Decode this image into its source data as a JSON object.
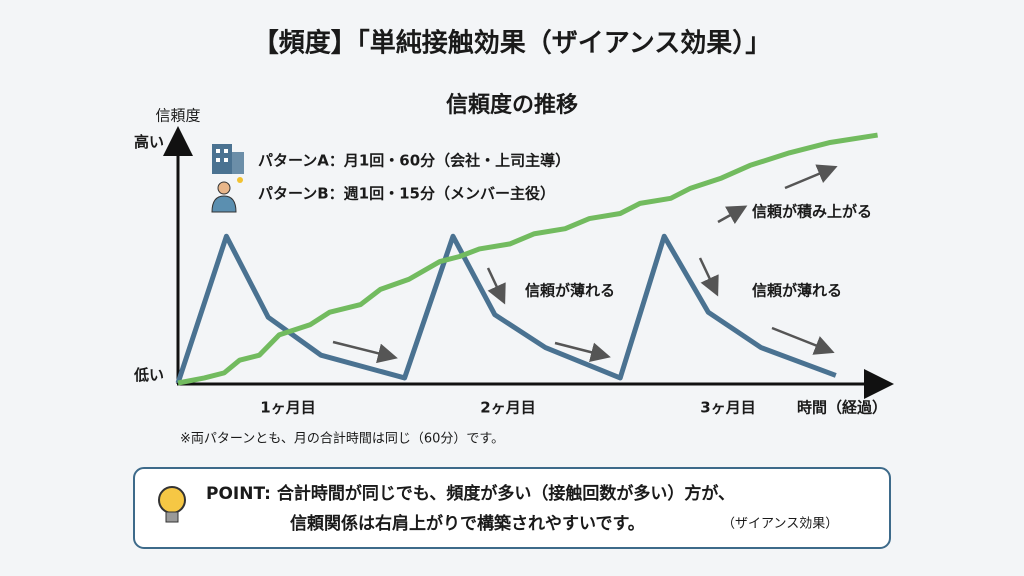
{
  "slide_title": "【頻度】「単純接触効果（ザイアンス効果）」",
  "chart_data": {
    "type": "line",
    "title": "信頼度の推移",
    "y_label": "信頼度",
    "x_label": "時間（経過）",
    "xlim": [
      0,
      3.25
    ],
    "ylim": [
      0,
      100
    ],
    "xticks": [
      {
        "value": 0.5,
        "label": "1ヶ月目"
      },
      {
        "value": 1.5,
        "label": "2ヶ月目"
      },
      {
        "value": 2.5,
        "label": "3ヶ月目"
      }
    ],
    "yticks": [
      {
        "value": 3,
        "label": "低い"
      },
      {
        "value": 95,
        "label": "高い"
      }
    ],
    "series": [
      {
        "name": "パターンA：月1回・60分（会社・上司主導）",
        "color": "#4a7291",
        "x": [
          0,
          0.22,
          0.41,
          0.65,
          1.03,
          1.25,
          1.44,
          1.67,
          2.01,
          2.21,
          2.41,
          2.65,
          2.99
        ],
        "values": [
          0,
          58,
          26,
          11,
          2,
          58,
          27,
          14,
          2,
          58,
          28,
          14,
          3
        ]
      },
      {
        "name": "パターンB：週1回・15分（メンバー主役）",
        "color": "#72bb5f",
        "x": [
          0,
          0.12,
          0.21,
          0.28,
          0.37,
          0.46,
          0.6,
          0.69,
          0.83,
          0.92,
          1.05,
          1.19,
          1.28,
          1.37,
          1.51,
          1.62,
          1.76,
          1.87,
          2.01,
          2.1,
          2.24,
          2.33,
          2.47,
          2.6,
          2.78,
          2.96,
          3.18
        ],
        "values": [
          0,
          2,
          4,
          9,
          11,
          19,
          23,
          28,
          31,
          37,
          41,
          48,
          50,
          53,
          55,
          59,
          61,
          65,
          67,
          71,
          73,
          77,
          81,
          86,
          91,
          95,
          98
        ]
      }
    ],
    "annotations": [
      "信頼が薄れる",
      "信頼が薄れる",
      "信頼が積み上がる"
    ]
  },
  "footnote": "※両パターンとも、月の合計時間は同じ（60分）です。",
  "point": {
    "line1": "POINT: 合計時間が同じでも、頻度が多い（接触回数が多い）方が、",
    "line2": "信頼関係は右肩上がりで構築されやすいです。",
    "note": "（ザイアンス効果）"
  }
}
